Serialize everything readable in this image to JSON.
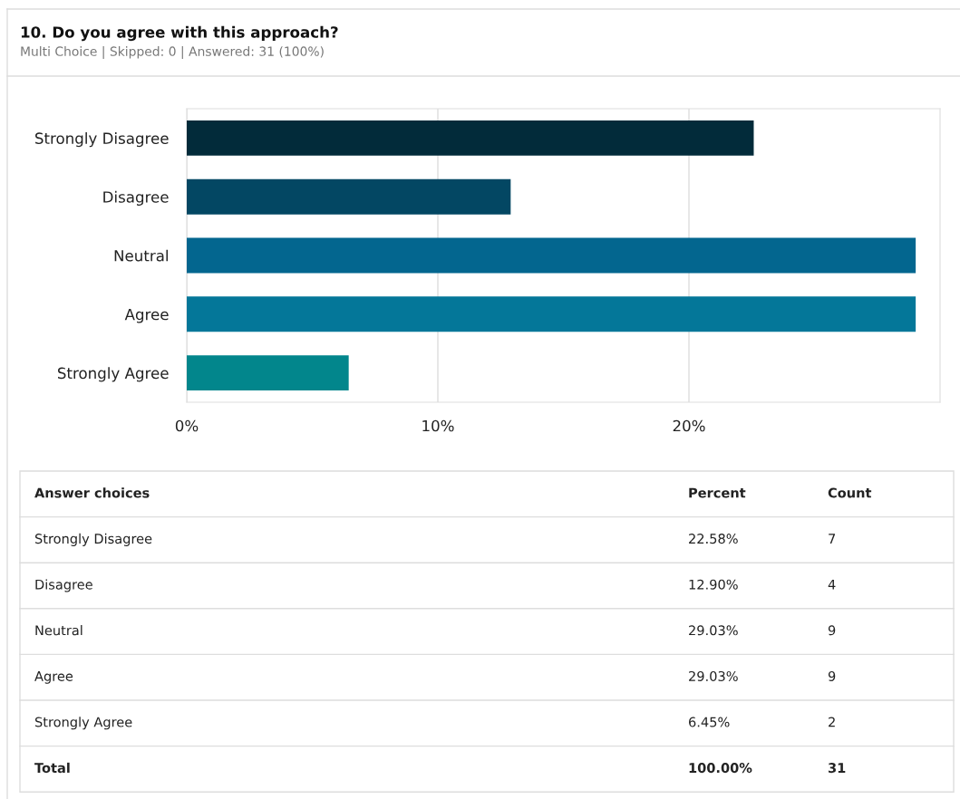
{
  "chart_data": {
    "type": "bar",
    "orientation": "horizontal",
    "title": "10. Do you agree with this approach?",
    "subtitle": "Multi Choice | Skipped: 0 | Answered: 31 (100%)",
    "categories": [
      "Strongly Disagree",
      "Disagree",
      "Neutral",
      "Agree",
      "Strongly Agree"
    ],
    "values": [
      22.58,
      12.9,
      29.03,
      29.03,
      6.45
    ],
    "colors": [
      "#022b3a",
      "#034763",
      "#03668f",
      "#047799",
      "#02868c"
    ],
    "xlim": [
      0,
      30
    ],
    "xticks": [
      {
        "value": 0,
        "label": "0%"
      },
      {
        "value": 10,
        "label": "10%"
      },
      {
        "value": 20,
        "label": "20%"
      }
    ],
    "grid": "x",
    "annotations": [
      "Answer choices",
      "Percent",
      "Count",
      "22.58%",
      "12.90%",
      "29.03%",
      "29.03%",
      "6.45%",
      "7",
      "4",
      "9",
      "9",
      "2",
      "Total",
      "100.00%",
      "31"
    ]
  }
}
